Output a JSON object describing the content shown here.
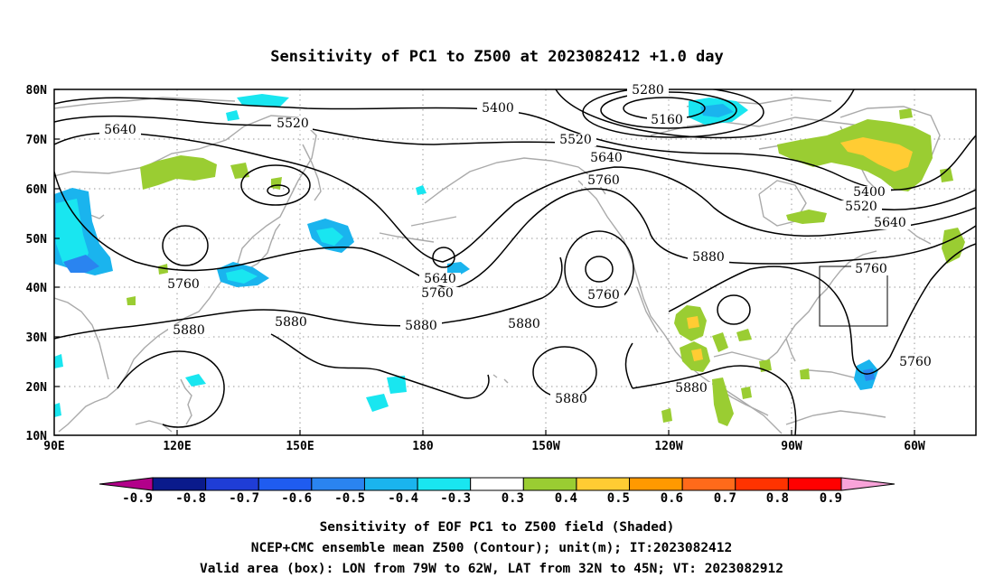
{
  "title": "Sensitivity of PC1 to Z500 at 2023082412 +1.0 day",
  "lat_ticks": [
    "80N",
    "70N",
    "60N",
    "50N",
    "40N",
    "30N",
    "20N",
    "10N"
  ],
  "lon_ticks": [
    "90E",
    "120E",
    "150E",
    "180",
    "150W",
    "120W",
    "90W",
    "60W"
  ],
  "contour_labels": [
    "5280",
    "5160",
    "5400",
    "5520",
    "5640",
    "5760",
    "5640",
    "5520",
    "5400",
    "5520",
    "5640",
    "5760",
    "5640",
    "5760",
    "5880",
    "5880",
    "5760",
    "5880",
    "5880",
    "5760",
    "5880",
    "5880",
    "5880",
    "5760"
  ],
  "colorbar": {
    "labels": [
      "-0.9",
      "-0.8",
      "-0.7",
      "-0.6",
      "-0.5",
      "-0.4",
      "-0.3",
      "0.3",
      "0.4",
      "0.5",
      "0.6",
      "0.7",
      "0.8",
      "0.9"
    ],
    "colors": [
      "#b2008a",
      "#0a1a8c",
      "#1f3dd6",
      "#1f5cf0",
      "#2a84f0",
      "#1ab4ee",
      "#19e6f0",
      "#ffffff",
      "#9acd32",
      "#ffcc33",
      "#ff9900",
      "#ff6a1a",
      "#ff3300",
      "#ff0000",
      "#f8a3d9"
    ]
  },
  "box": {
    "lon_west": "79W",
    "lon_east": "62W",
    "lat_south": "32N",
    "lat_north": "45N"
  },
  "captions": [
    "Sensitivity of EOF PC1 to Z500 field (Shaded)",
    "NCEP+CMC ensemble mean Z500 (Contour); unit(m); IT:2023082412",
    "Valid area (box): LON from 79W to 62W, LAT from 32N to 45N; VT: 2023082912"
  ]
}
